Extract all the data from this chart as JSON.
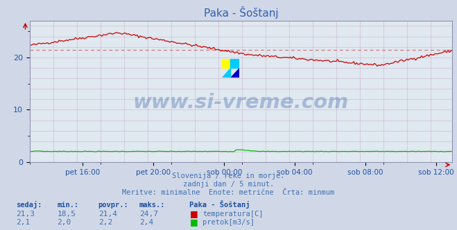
{
  "title": "Paka - Šoštanj",
  "background_color": "#d0d8e8",
  "plot_background_color": "#e0e8f0",
  "grid_color": "#c0a0c0",
  "xlabel_ticks": [
    "pet 16:00",
    "pet 20:00",
    "sob 00:00",
    "sob 04:00",
    "sob 08:00",
    "sob 12:00"
  ],
  "ylabel_ticks": [
    0,
    10,
    20
  ],
  "ylim": [
    0,
    27
  ],
  "xlim": [
    0,
    287
  ],
  "temp_color": "#cc0000",
  "flow_color": "#00bb00",
  "avg_line_color": "#cc6666",
  "avg_temp": 21.4,
  "watermark_text": "www.si-vreme.com",
  "watermark_color": "#2050a0",
  "subtitle1": "Slovenija / reke in morje.",
  "subtitle2": "zadnji dan / 5 minut.",
  "subtitle3": "Meritve: minimalne  Enote: metrične  Črta: minmum",
  "subtitle_color": "#4070b0",
  "table_headers": [
    "sedaj:",
    "min.:",
    "povpr.:",
    "maks.:"
  ],
  "table_row1": [
    "21,3",
    "18,5",
    "21,4",
    "24,7"
  ],
  "table_row2": [
    "2,1",
    "2,0",
    "2,2",
    "2,4"
  ],
  "table_station": "Paka - Šoštanj",
  "table_header_color": "#2050a0"
}
